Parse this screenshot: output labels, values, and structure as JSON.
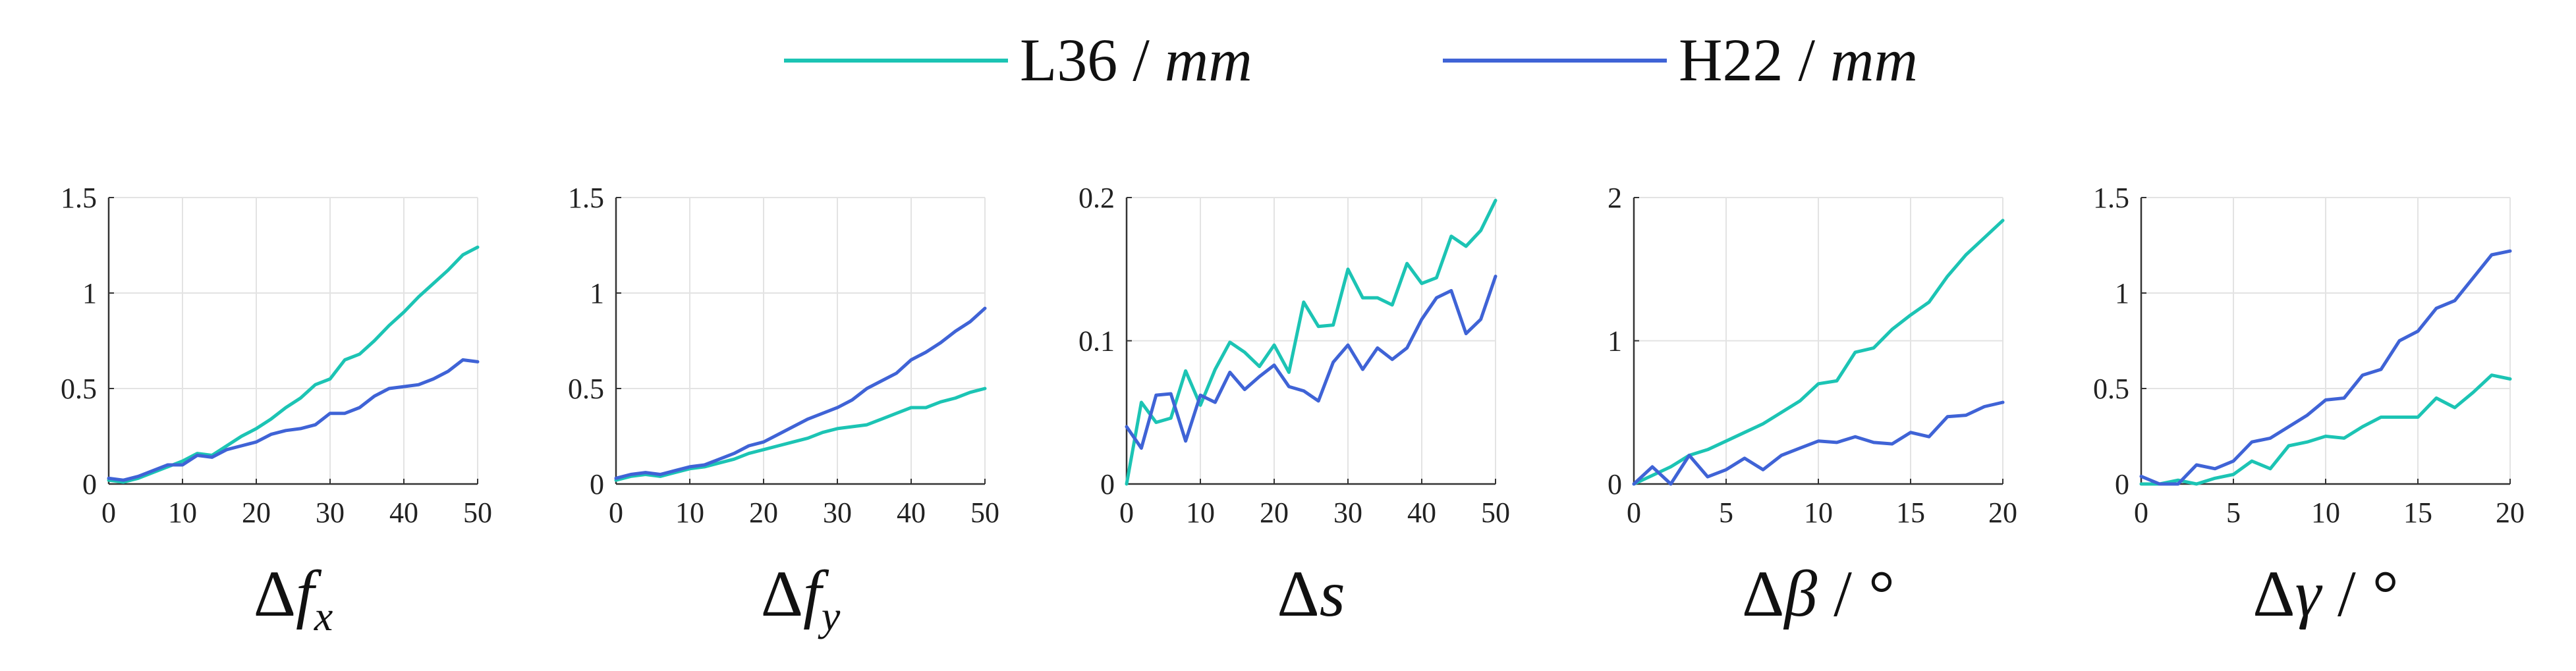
{
  "colors": {
    "L36": "#1cc4b4",
    "H22": "#3f63d6",
    "grid": "#e3e3e3",
    "axis": "#333333"
  },
  "legend": [
    {
      "key": "L36",
      "label": "L36",
      "sep": " / ",
      "unit": "mm"
    },
    {
      "key": "H22",
      "label": "H22",
      "sep": " / ",
      "unit": "mm"
    }
  ],
  "chart_data": [
    {
      "type": "line",
      "xlabel_sym": "Δ",
      "xlabel_var": "f",
      "xlabel_sub": "x",
      "xlabel_unit": "",
      "xlim": [
        0,
        50
      ],
      "ylim": [
        0,
        1.5
      ],
      "xticks": [
        0,
        10,
        20,
        30,
        40,
        50
      ],
      "yticks": [
        0,
        0.5,
        1,
        1.5
      ],
      "xtick_labels": [
        "0",
        "10",
        "20",
        "30",
        "40",
        "50"
      ],
      "ytick_labels": [
        "0",
        "0.5",
        "1",
        "1.5"
      ],
      "x": [
        0,
        2,
        4,
        6,
        8,
        10,
        12,
        14,
        16,
        18,
        20,
        22,
        24,
        26,
        28,
        30,
        32,
        34,
        36,
        38,
        40,
        42,
        44,
        46,
        48,
        50
      ],
      "series": [
        {
          "name": "L36",
          "values": [
            0.02,
            0.01,
            0.03,
            0.06,
            0.09,
            0.12,
            0.16,
            0.15,
            0.2,
            0.25,
            0.29,
            0.34,
            0.4,
            0.45,
            0.52,
            0.55,
            0.65,
            0.68,
            0.75,
            0.83,
            0.9,
            0.98,
            1.05,
            1.12,
            1.2,
            1.24
          ]
        },
        {
          "name": "H22",
          "values": [
            0.03,
            0.02,
            0.04,
            0.07,
            0.1,
            0.1,
            0.15,
            0.14,
            0.18,
            0.2,
            0.22,
            0.26,
            0.28,
            0.29,
            0.31,
            0.37,
            0.37,
            0.4,
            0.46,
            0.5,
            0.51,
            0.52,
            0.55,
            0.59,
            0.65,
            0.64
          ]
        }
      ]
    },
    {
      "type": "line",
      "xlabel_sym": "Δ",
      "xlabel_var": "f",
      "xlabel_sub": "y",
      "xlabel_unit": "",
      "xlim": [
        0,
        50
      ],
      "ylim": [
        0,
        1.5
      ],
      "xticks": [
        0,
        10,
        20,
        30,
        40,
        50
      ],
      "yticks": [
        0,
        0.5,
        1,
        1.5
      ],
      "xtick_labels": [
        "0",
        "10",
        "20",
        "30",
        "40",
        "50"
      ],
      "ytick_labels": [
        "0",
        "0.5",
        "1",
        "1.5"
      ],
      "x": [
        0,
        2,
        4,
        6,
        8,
        10,
        12,
        14,
        16,
        18,
        20,
        22,
        24,
        26,
        28,
        30,
        32,
        34,
        36,
        38,
        40,
        42,
        44,
        46,
        48,
        50
      ],
      "series": [
        {
          "name": "L36",
          "values": [
            0.02,
            0.04,
            0.05,
            0.04,
            0.06,
            0.08,
            0.09,
            0.11,
            0.13,
            0.16,
            0.18,
            0.2,
            0.22,
            0.24,
            0.27,
            0.29,
            0.3,
            0.31,
            0.34,
            0.37,
            0.4,
            0.4,
            0.43,
            0.45,
            0.48,
            0.5
          ]
        },
        {
          "name": "H22",
          "values": [
            0.03,
            0.05,
            0.06,
            0.05,
            0.07,
            0.09,
            0.1,
            0.13,
            0.16,
            0.2,
            0.22,
            0.26,
            0.3,
            0.34,
            0.37,
            0.4,
            0.44,
            0.5,
            0.54,
            0.58,
            0.65,
            0.69,
            0.74,
            0.8,
            0.85,
            0.92
          ]
        }
      ]
    },
    {
      "type": "line",
      "xlabel_sym": "Δ",
      "xlabel_var": "s",
      "xlabel_sub": "",
      "xlabel_unit": "",
      "xlim": [
        0,
        50
      ],
      "ylim": [
        0,
        0.2
      ],
      "xticks": [
        0,
        10,
        20,
        30,
        40,
        50
      ],
      "yticks": [
        0,
        0.1,
        0.2
      ],
      "xtick_labels": [
        "0",
        "10",
        "20",
        "30",
        "40",
        "50"
      ],
      "ytick_labels": [
        "0",
        "0.1",
        "0.2"
      ],
      "x": [
        0,
        2,
        4,
        6,
        8,
        10,
        12,
        14,
        16,
        18,
        20,
        22,
        24,
        26,
        28,
        30,
        32,
        34,
        36,
        38,
        40,
        42,
        44,
        46,
        48,
        50
      ],
      "series": [
        {
          "name": "L36",
          "values": [
            0.0,
            0.057,
            0.043,
            0.046,
            0.079,
            0.055,
            0.08,
            0.099,
            0.092,
            0.082,
            0.097,
            0.078,
            0.127,
            0.11,
            0.111,
            0.15,
            0.13,
            0.13,
            0.125,
            0.154,
            0.14,
            0.144,
            0.173,
            0.166,
            0.177,
            0.198
          ]
        },
        {
          "name": "H22",
          "values": [
            0.04,
            0.025,
            0.062,
            0.063,
            0.03,
            0.062,
            0.057,
            0.078,
            0.066,
            0.075,
            0.083,
            0.068,
            0.065,
            0.058,
            0.085,
            0.097,
            0.08,
            0.095,
            0.087,
            0.095,
            0.115,
            0.13,
            0.135,
            0.105,
            0.115,
            0.145
          ]
        }
      ]
    },
    {
      "type": "line",
      "xlabel_sym": "Δ",
      "xlabel_var": "β",
      "xlabel_sub": "",
      "xlabel_unit": " / °",
      "xlim": [
        0,
        20
      ],
      "ylim": [
        0,
        2
      ],
      "xticks": [
        0,
        5,
        10,
        15,
        20
      ],
      "yticks": [
        0,
        1,
        2
      ],
      "xtick_labels": [
        "0",
        "5",
        "10",
        "15",
        "20"
      ],
      "ytick_labels": [
        "0",
        "1",
        "2"
      ],
      "x": [
        0,
        1,
        2,
        3,
        4,
        5,
        6,
        7,
        8,
        9,
        10,
        11,
        12,
        13,
        14,
        15,
        16,
        17,
        18,
        19,
        20
      ],
      "series": [
        {
          "name": "L36",
          "values": [
            0.0,
            0.06,
            0.12,
            0.2,
            0.24,
            0.3,
            0.36,
            0.42,
            0.5,
            0.58,
            0.7,
            0.72,
            0.92,
            0.95,
            1.08,
            1.18,
            1.27,
            1.45,
            1.6,
            1.72,
            1.84
          ]
        },
        {
          "name": "H22",
          "values": [
            0.0,
            0.12,
            0.0,
            0.2,
            0.05,
            0.1,
            0.18,
            0.1,
            0.2,
            0.25,
            0.3,
            0.29,
            0.33,
            0.29,
            0.28,
            0.36,
            0.33,
            0.47,
            0.48,
            0.54,
            0.57
          ]
        }
      ]
    },
    {
      "type": "line",
      "xlabel_sym": "Δ",
      "xlabel_var": "γ",
      "xlabel_sub": "",
      "xlabel_unit": " / °",
      "xlim": [
        0,
        20
      ],
      "ylim": [
        0,
        1.5
      ],
      "xticks": [
        0,
        5,
        10,
        15,
        20
      ],
      "yticks": [
        0,
        0.5,
        1,
        1.5
      ],
      "xtick_labels": [
        "0",
        "5",
        "10",
        "15",
        "20"
      ],
      "ytick_labels": [
        "0",
        "0.5",
        "1",
        "1.5"
      ],
      "x": [
        0,
        1,
        2,
        3,
        4,
        5,
        6,
        7,
        8,
        9,
        10,
        11,
        12,
        13,
        14,
        15,
        16,
        17,
        18,
        19,
        20
      ],
      "series": [
        {
          "name": "L36",
          "values": [
            0.0,
            0.0,
            0.02,
            0.0,
            0.03,
            0.05,
            0.12,
            0.08,
            0.2,
            0.22,
            0.25,
            0.24,
            0.3,
            0.35,
            0.35,
            0.35,
            0.45,
            0.4,
            0.48,
            0.57,
            0.55
          ]
        },
        {
          "name": "H22",
          "values": [
            0.04,
            0.0,
            0.0,
            0.1,
            0.08,
            0.12,
            0.22,
            0.24,
            0.3,
            0.36,
            0.44,
            0.45,
            0.57,
            0.6,
            0.75,
            0.8,
            0.92,
            0.96,
            1.08,
            1.2,
            1.22
          ]
        }
      ]
    }
  ]
}
